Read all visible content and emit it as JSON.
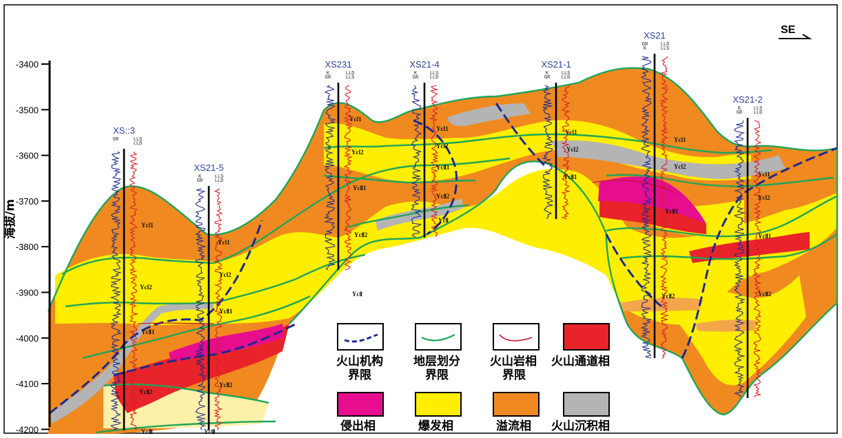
{
  "y_axis": {
    "label": "海拔/m",
    "ticks": [
      "-3400",
      "-3500",
      "-3600",
      "-3700",
      "-3800",
      "-3900",
      "-4000",
      "-4100",
      "-4200"
    ]
  },
  "direction": "SE",
  "wells": [
    {
      "name": "XS::3",
      "curves_left": "GR",
      "curves_right": "LLS\nLLD"
    },
    {
      "name": "XS21-5",
      "curves_left": "K\nGR",
      "curves_right": "LLS\nLLD"
    },
    {
      "name": "XS231",
      "curves_left": "K\nGR",
      "curves_right": "LLD\nLLS"
    },
    {
      "name": "XS21-4",
      "curves_left": "K\nGR",
      "curves_right": "LLS\nLLD"
    },
    {
      "name": "XS21-1",
      "curves_left": "K\nGR",
      "curves_right": "LLS\nLLD"
    },
    {
      "name": "XS21",
      "curves_left": "GR\nK",
      "curves_right": "LLD\nLLS"
    },
    {
      "name": "XS21-2",
      "curves_left": "K\nGR",
      "curves_right": "LLS\nLLD"
    }
  ],
  "unit_labels": [
    "YcⅠ1",
    "YcⅠ2",
    "YcⅡ1",
    "YcⅡ2",
    "YcⅢ",
    "YcⅡ"
  ],
  "legend": [
    {
      "id": "volcano-boundary",
      "label": "火山机构\n界限"
    },
    {
      "id": "stratum-division",
      "label": "地层划分\n界限"
    },
    {
      "id": "lithofacies-boundary",
      "label": "火山岩相\n界限"
    },
    {
      "id": "conduit",
      "label": "火山通道相",
      "color": "#e8232a"
    },
    {
      "id": "intrusive",
      "label": "侵出相",
      "color": "#e60d8e"
    },
    {
      "id": "explosive",
      "label": "爆发相",
      "color": "#ffee00"
    },
    {
      "id": "effusive",
      "label": "溢流相",
      "color": "#f08a20"
    },
    {
      "id": "sedimentary",
      "label": "火山沉积相",
      "color": "#b4b4b4"
    }
  ],
  "colors": {
    "orange": "#f08a20",
    "orange_light": "#f4a64a",
    "yellow": "#ffee00",
    "yellow_pale": "#fdf0a8",
    "red": "#e8232a",
    "magenta": "#e60d8e",
    "gray": "#b4b4b4",
    "green": "#1ea55a",
    "navy": "#1d2a8c"
  }
}
